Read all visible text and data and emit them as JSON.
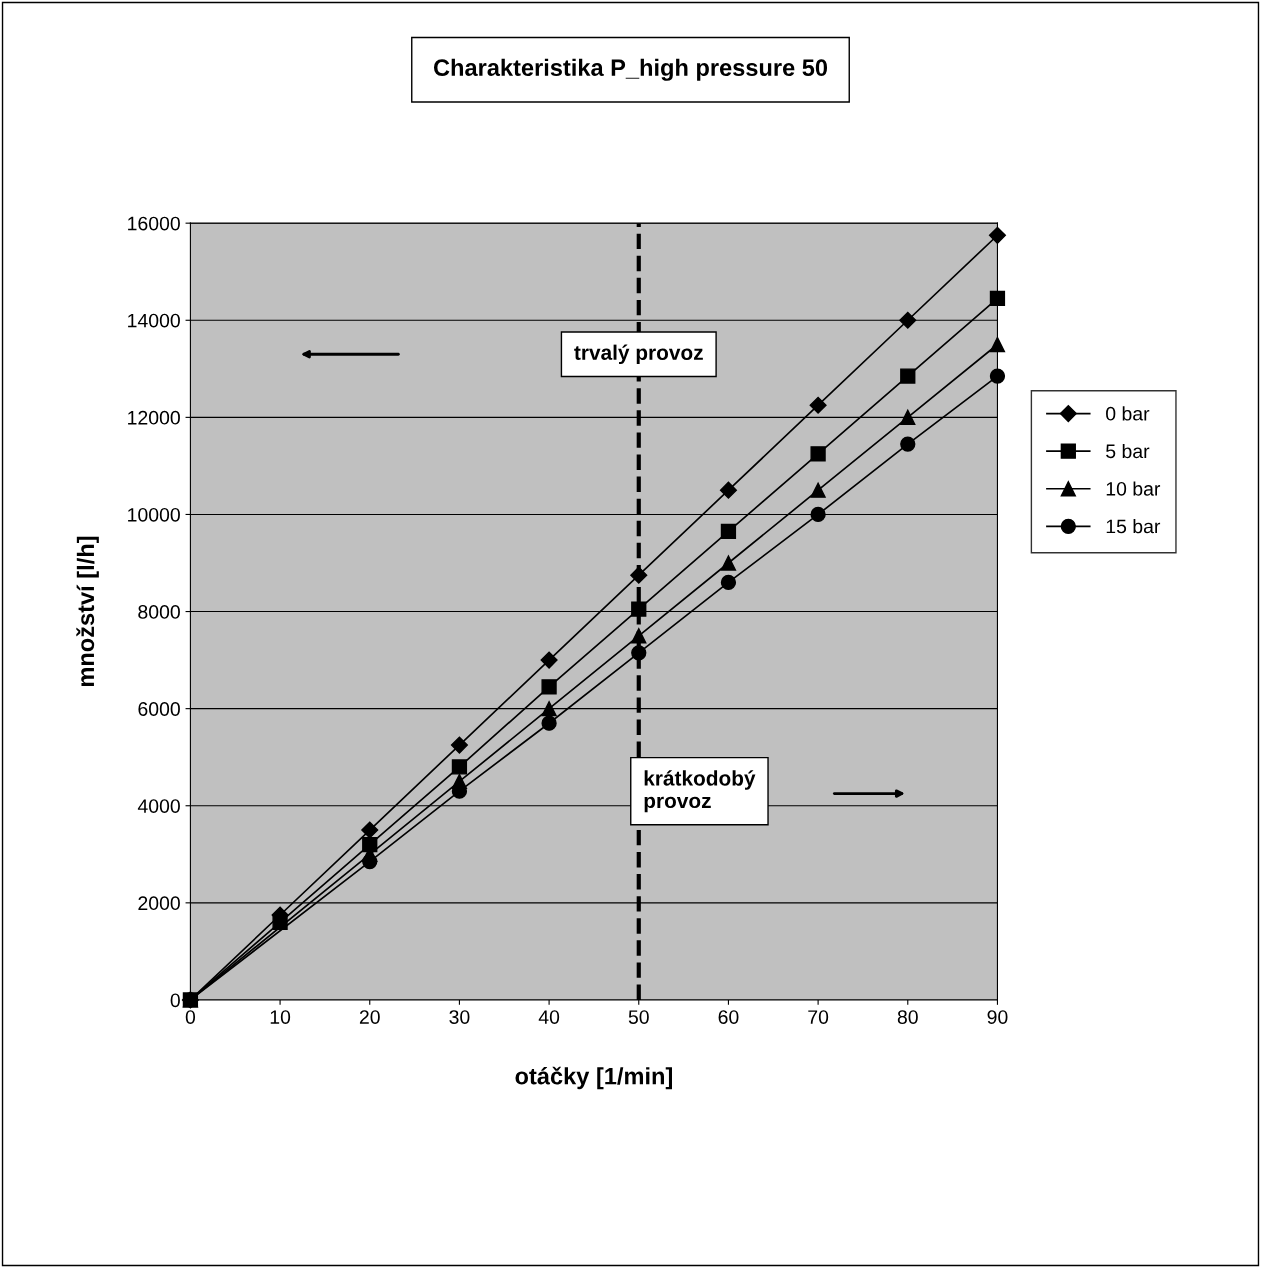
{
  "chart_data": {
    "type": "line",
    "title": "Charakteristika P_high pressure 50",
    "xlabel": "otáčky [1/min]",
    "ylabel": "množství [l/h]",
    "x": [
      0,
      10,
      20,
      30,
      40,
      50,
      60,
      70,
      80,
      90
    ],
    "series": [
      {
        "name": "0 bar",
        "color": "#000000",
        "marker": "diamond",
        "values": [
          0,
          1750,
          3500,
          5250,
          7000,
          8750,
          10500,
          12250,
          14000,
          15750
        ]
      },
      {
        "name": "5 bar",
        "color": "#000000",
        "marker": "square",
        "values": [
          0,
          1600,
          3200,
          4800,
          6450,
          8050,
          9650,
          11250,
          12850,
          14450
        ]
      },
      {
        "name": "10 bar",
        "color": "#000000",
        "marker": "triangle",
        "values": [
          0,
          null,
          3000,
          4500,
          6000,
          7500,
          9000,
          10500,
          12000,
          13500
        ]
      },
      {
        "name": "15 bar",
        "color": "#000000",
        "marker": "circle",
        "values": [
          0,
          null,
          2850,
          4300,
          5700,
          7150,
          8600,
          10000,
          11450,
          12850
        ]
      }
    ],
    "xlim": [
      0,
      90
    ],
    "xticks": [
      0,
      10,
      20,
      30,
      40,
      50,
      60,
      70,
      80,
      90
    ],
    "ylim": [
      0,
      16000
    ],
    "yticks": [
      0,
      2000,
      4000,
      6000,
      8000,
      10000,
      12000,
      14000,
      16000
    ],
    "grid": "y",
    "legend": "right",
    "line_style": "solid",
    "ref_lines": [
      {
        "axis": "x",
        "value": 50,
        "color": "#000000",
        "line_style": "dashed"
      }
    ],
    "annotations": [
      "trvalý provoz",
      "krátkodobý provoz"
    ]
  }
}
